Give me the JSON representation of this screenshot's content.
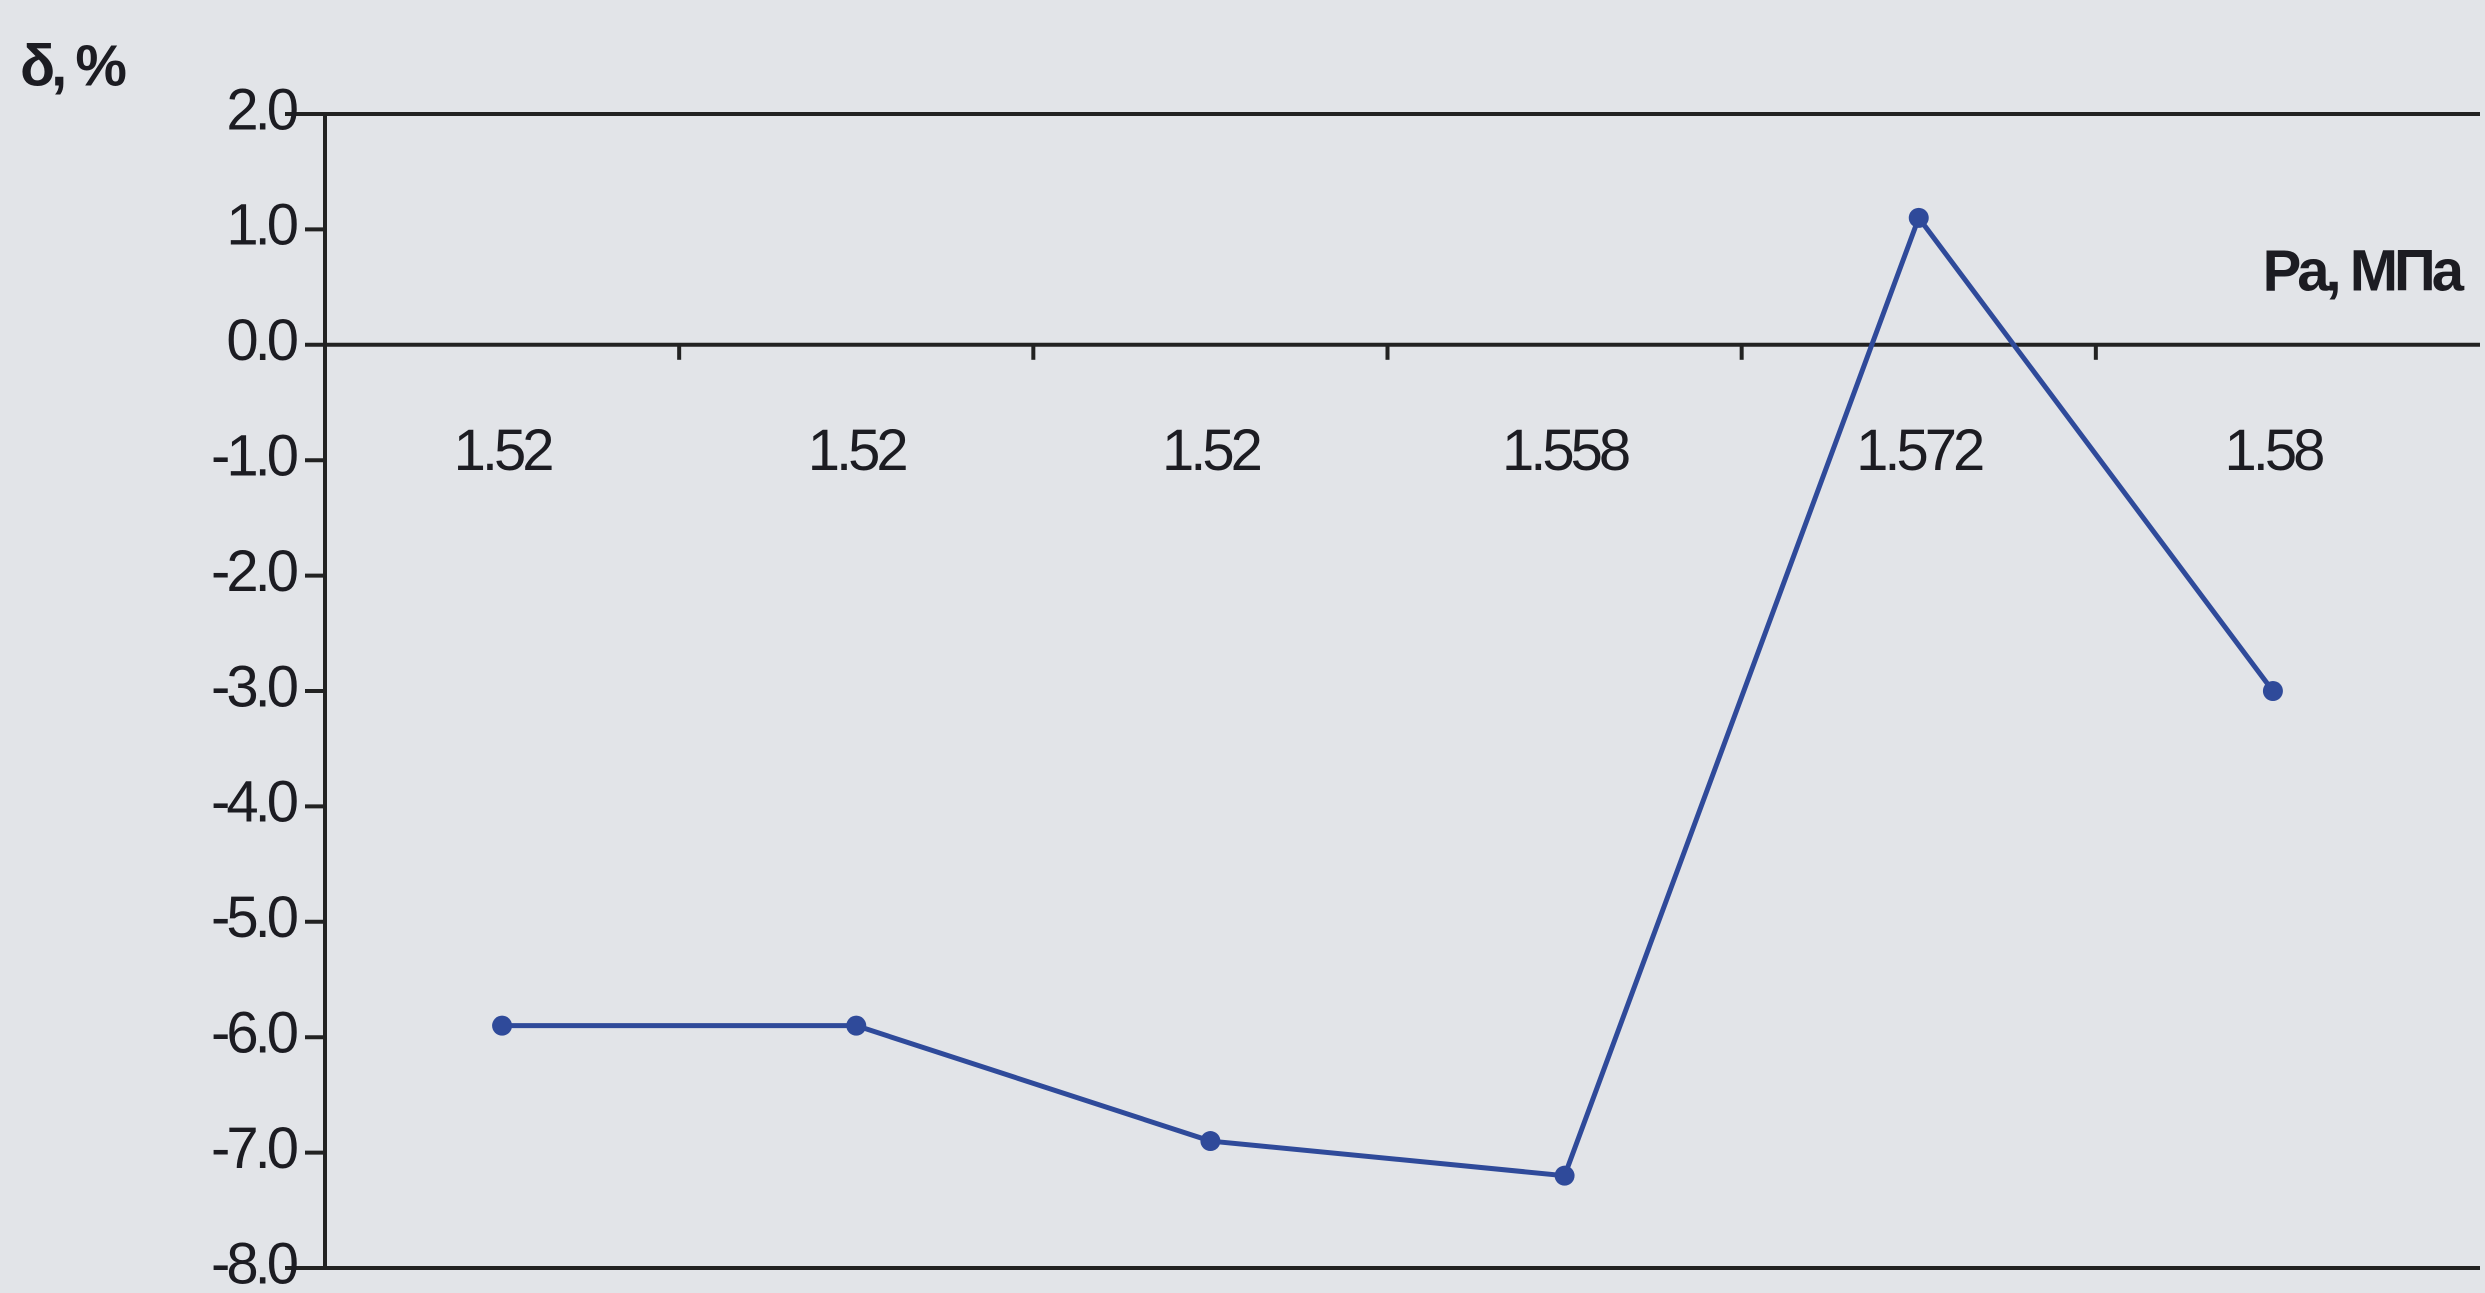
{
  "chart_data": {
    "type": "line",
    "y_label": "δ, %",
    "x_label": "Pa, МПа",
    "categories": [
      "1.52",
      "1.52",
      "1.52",
      "1.558",
      "1.572",
      "1.58"
    ],
    "series": [
      {
        "name": "δ",
        "color": "#2f4a9a",
        "values": [
          -5.9,
          -5.9,
          -6.9,
          -7.2,
          1.1,
          -3.0
        ]
      }
    ],
    "ylim": [
      -8,
      2
    ],
    "yticks": [
      {
        "value": -8,
        "label": "-8.0"
      },
      {
        "value": -7,
        "label": "-7.0"
      },
      {
        "value": -6,
        "label": "-6.0"
      },
      {
        "value": -5,
        "label": "-5.0"
      },
      {
        "value": -4,
        "label": "-4.0"
      },
      {
        "value": -3,
        "label": "-3.0"
      },
      {
        "value": -2,
        "label": "-2.0"
      },
      {
        "value": -1,
        "label": "-1.0"
      },
      {
        "value": 0,
        "label": "0.0"
      },
      {
        "value": 1,
        "label": "1.0"
      },
      {
        "value": 2,
        "label": "2.0"
      }
    ],
    "grid": false
  }
}
